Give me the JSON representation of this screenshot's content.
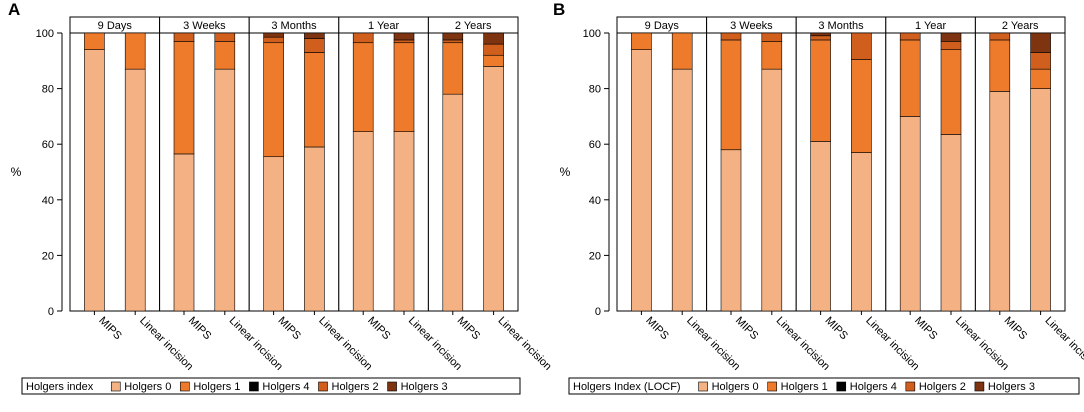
{
  "figure": {
    "panels_meta": "two stacked-bar panels"
  },
  "legend_items": [
    {
      "label": "Holgers 0",
      "color": "#F4B183"
    },
    {
      "label": "Holgers 1",
      "color": "#EE7B2C"
    },
    {
      "label": "Holgers 4",
      "color": "#000000"
    },
    {
      "label": "Holgers 2",
      "color": "#D05F1E"
    },
    {
      "label": "Holgers 3",
      "color": "#7E3411"
    }
  ],
  "chart_data": [
    {
      "type": "bar",
      "stacked": true,
      "panel_label": "A",
      "legend_title": "Holgers index",
      "ylabel": "%",
      "ylim": [
        0,
        100
      ],
      "yticks": [
        0,
        20,
        40,
        60,
        80,
        100
      ],
      "grid": false,
      "categories": [
        "MIPS",
        "Linear incision"
      ],
      "groups": [
        {
          "label": "9 Days",
          "bars": [
            {
              "category": "MIPS",
              "segments": {
                "Holgers 0": 94,
                "Holgers 1": 6,
                "Holgers 4": 0,
                "Holgers 2": 0,
                "Holgers 3": 0
              }
            },
            {
              "category": "Linear incision",
              "segments": {
                "Holgers 0": 87,
                "Holgers 1": 13,
                "Holgers 4": 0,
                "Holgers 2": 0,
                "Holgers 3": 0
              }
            }
          ]
        },
        {
          "label": "3 Weeks",
          "bars": [
            {
              "category": "MIPS",
              "segments": {
                "Holgers 0": 56.5,
                "Holgers 1": 40.5,
                "Holgers 4": 0,
                "Holgers 2": 3,
                "Holgers 3": 0
              }
            },
            {
              "category": "Linear incision",
              "segments": {
                "Holgers 0": 87,
                "Holgers 1": 10,
                "Holgers 4": 0,
                "Holgers 2": 3,
                "Holgers 3": 0
              }
            }
          ]
        },
        {
          "label": "3 Months",
          "bars": [
            {
              "category": "MIPS",
              "segments": {
                "Holgers 0": 55.5,
                "Holgers 1": 41,
                "Holgers 4": 0,
                "Holgers 2": 2,
                "Holgers 3": 1.5
              }
            },
            {
              "category": "Linear incision",
              "segments": {
                "Holgers 0": 59,
                "Holgers 1": 34,
                "Holgers 4": 0,
                "Holgers 2": 5,
                "Holgers 3": 2
              }
            }
          ]
        },
        {
          "label": "1 Year",
          "bars": [
            {
              "category": "MIPS",
              "segments": {
                "Holgers 0": 64.5,
                "Holgers 1": 32,
                "Holgers 4": 0,
                "Holgers 2": 3.5,
                "Holgers 3": 0
              }
            },
            {
              "category": "Linear incision",
              "segments": {
                "Holgers 0": 64.5,
                "Holgers 1": 32,
                "Holgers 4": 0,
                "Holgers 2": 1,
                "Holgers 3": 2.5
              }
            }
          ]
        },
        {
          "label": "2 Years",
          "bars": [
            {
              "category": "MIPS",
              "segments": {
                "Holgers 0": 78,
                "Holgers 1": 18.5,
                "Holgers 4": 0,
                "Holgers 2": 1,
                "Holgers 3": 2.5
              }
            },
            {
              "category": "Linear incision",
              "segments": {
                "Holgers 0": 88,
                "Holgers 1": 4,
                "Holgers 4": 0,
                "Holgers 2": 4,
                "Holgers 3": 4
              }
            }
          ]
        }
      ]
    },
    {
      "type": "bar",
      "stacked": true,
      "panel_label": "B",
      "legend_title": "Holgers Index (LOCF)",
      "ylabel": "%",
      "ylim": [
        0,
        100
      ],
      "yticks": [
        0,
        20,
        40,
        60,
        80,
        100
      ],
      "grid": false,
      "categories": [
        "MIPS",
        "Linear incision"
      ],
      "groups": [
        {
          "label": "9 Days",
          "bars": [
            {
              "category": "MIPS",
              "segments": {
                "Holgers 0": 94,
                "Holgers 1": 6,
                "Holgers 4": 0,
                "Holgers 2": 0,
                "Holgers 3": 0
              }
            },
            {
              "category": "Linear incision",
              "segments": {
                "Holgers 0": 87,
                "Holgers 1": 13,
                "Holgers 4": 0,
                "Holgers 2": 0,
                "Holgers 3": 0
              }
            }
          ]
        },
        {
          "label": "3 Weeks",
          "bars": [
            {
              "category": "MIPS",
              "segments": {
                "Holgers 0": 58,
                "Holgers 1": 39.5,
                "Holgers 4": 0,
                "Holgers 2": 2.5,
                "Holgers 3": 0
              }
            },
            {
              "category": "Linear incision",
              "segments": {
                "Holgers 0": 87,
                "Holgers 1": 10,
                "Holgers 4": 0,
                "Holgers 2": 3,
                "Holgers 3": 0
              }
            }
          ]
        },
        {
          "label": "3 Months",
          "bars": [
            {
              "category": "MIPS",
              "segments": {
                "Holgers 0": 61,
                "Holgers 1": 36.5,
                "Holgers 4": 0,
                "Holgers 2": 1.5,
                "Holgers 3": 1
              }
            },
            {
              "category": "Linear incision",
              "segments": {
                "Holgers 0": 57,
                "Holgers 1": 33.5,
                "Holgers 4": 0,
                "Holgers 2": 9.5,
                "Holgers 3": 0
              }
            }
          ]
        },
        {
          "label": "1 Year",
          "bars": [
            {
              "category": "MIPS",
              "segments": {
                "Holgers 0": 70,
                "Holgers 1": 27.5,
                "Holgers 4": 0,
                "Holgers 2": 2.5,
                "Holgers 3": 0
              }
            },
            {
              "category": "Linear incision",
              "segments": {
                "Holgers 0": 63.5,
                "Holgers 1": 30.5,
                "Holgers 4": 0,
                "Holgers 2": 3,
                "Holgers 3": 3
              }
            }
          ]
        },
        {
          "label": "2 Years",
          "bars": [
            {
              "category": "MIPS",
              "segments": {
                "Holgers 0": 79,
                "Holgers 1": 18.5,
                "Holgers 4": 0,
                "Holgers 2": 2.5,
                "Holgers 3": 0
              }
            },
            {
              "category": "Linear incision",
              "segments": {
                "Holgers 0": 80,
                "Holgers 1": 7,
                "Holgers 4": 0,
                "Holgers 2": 6,
                "Holgers 3": 7
              }
            }
          ]
        }
      ]
    }
  ]
}
